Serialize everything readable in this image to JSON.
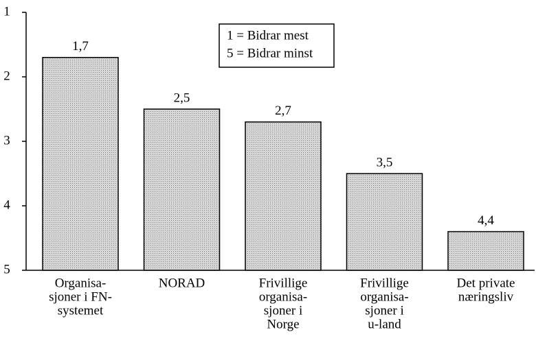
{
  "chart_data": {
    "type": "bar",
    "categories": [
      [
        "Organisa-",
        "sjoner i FN-",
        "systemet"
      ],
      [
        "NORAD"
      ],
      [
        "Frivillige",
        "organisa-",
        "sjoner i",
        "Norge"
      ],
      [
        "Frivillige",
        "organisa-",
        "sjoner i",
        "u-land"
      ],
      [
        "Det private",
        "næringsliv"
      ]
    ],
    "values": [
      1.7,
      2.5,
      2.7,
      3.5,
      4.4
    ],
    "value_labels": [
      "1,7",
      "2,5",
      "2,7",
      "3,5",
      "4,4"
    ],
    "color": "#c8c8c8",
    "ylim": [
      5,
      1
    ],
    "yticks": [
      1,
      2,
      3,
      4,
      5
    ],
    "annotations": [
      "1 = Bidrar mest",
      "5 = Bidrar minst"
    ]
  }
}
